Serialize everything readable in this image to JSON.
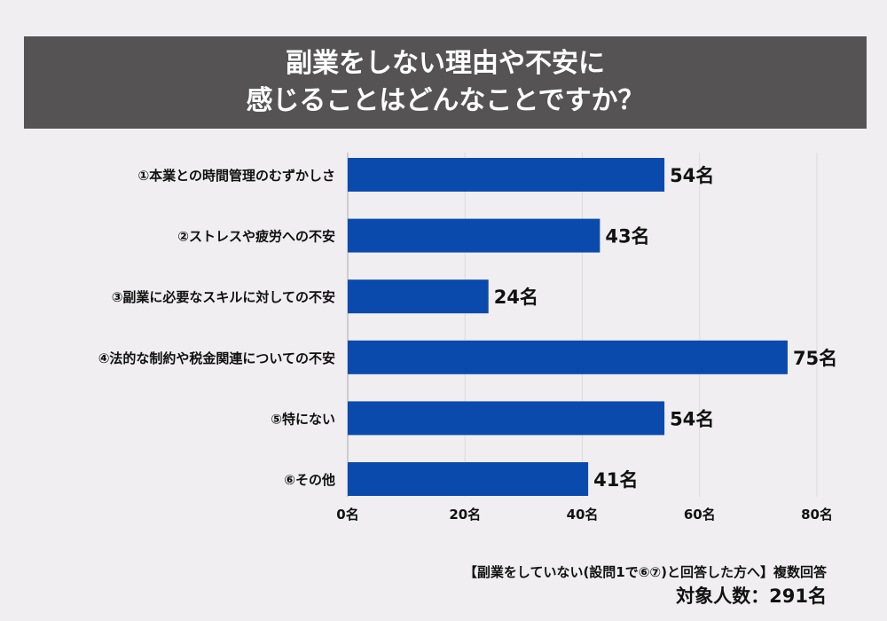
{
  "title_lines": [
    "副業をしない理由や不安に",
    "感じることはどんなことですか？"
  ],
  "chart_data": {
    "type": "bar",
    "orientation": "horizontal",
    "categories": [
      "①本業との時間管理のむずかしさ",
      "②ストレスや疲労への不安",
      "③副業に必要なスキルに対しての不安",
      "④法的な制約や税金関連についての不安",
      "⑤特にない",
      "⑥その他"
    ],
    "values": [
      54,
      43,
      24,
      75,
      54,
      41
    ],
    "data_labels": [
      "54名",
      "43名",
      "24名",
      "75名",
      "54名",
      "41名"
    ],
    "xlim": [
      0,
      80
    ],
    "x_ticks": [
      0,
      20,
      40,
      60,
      80
    ],
    "x_tick_labels": [
      "0名",
      "20名",
      "40名",
      "60名",
      "80名"
    ],
    "grid": true,
    "bar_color": "#0a4aad"
  },
  "footer": {
    "note": "【副業をしていない(設問1で⑥⑦)と回答した方へ】複数回答",
    "total": "対象人数：291名"
  }
}
